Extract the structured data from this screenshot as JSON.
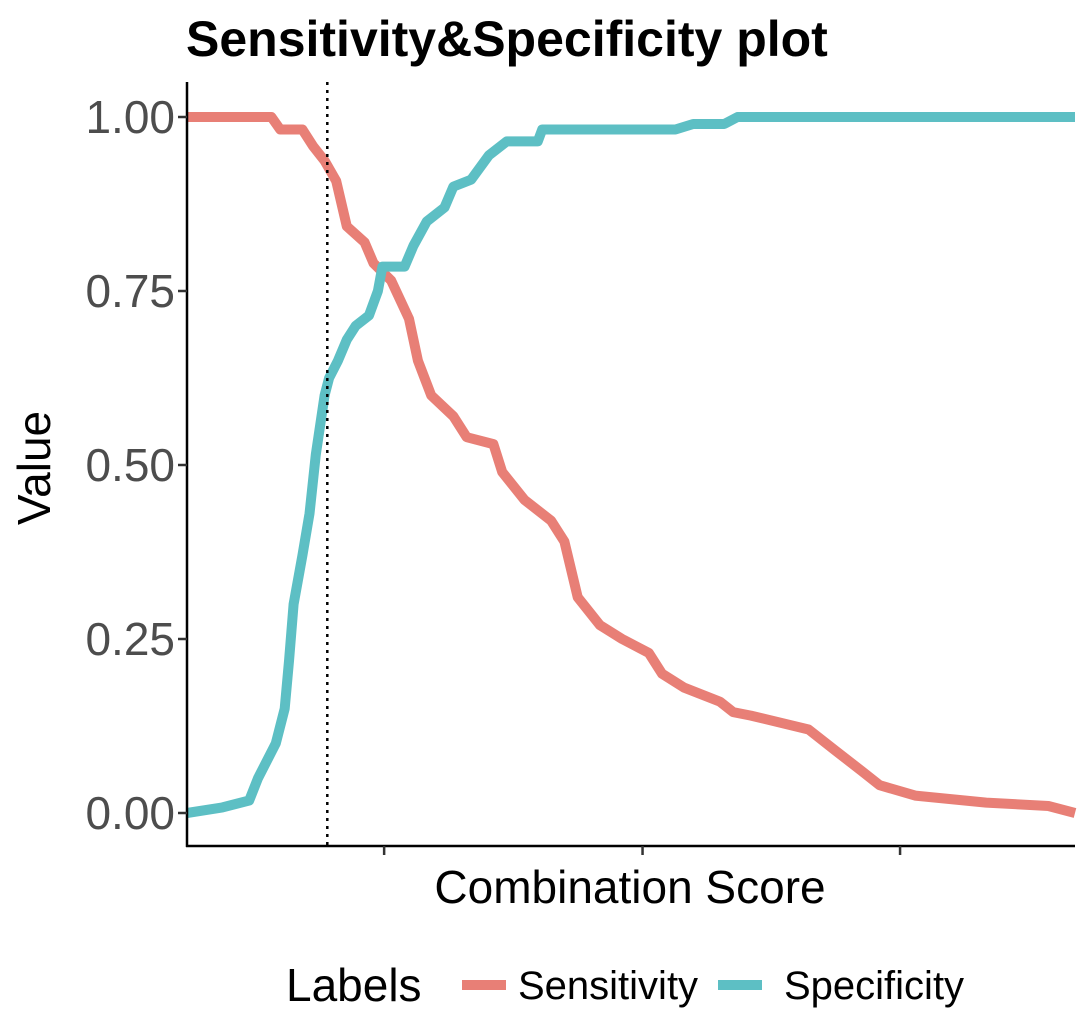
{
  "chart_data": {
    "type": "line",
    "title": "Sensitivity&Specificity plot",
    "xlabel": "Combination Score",
    "ylabel": "Value",
    "ylim": [
      0,
      1
    ],
    "yticks": [
      "0.00",
      "0.25",
      "0.50",
      "0.75",
      "1.00"
    ],
    "xlim": [
      0,
      1
    ],
    "grid": false,
    "legend": {
      "title": "Labels",
      "position": "bottom"
    },
    "cutoff_x": 0.158,
    "series": [
      {
        "name": "Sensitivity",
        "color": "#E87F76",
        "points": [
          [
            0.0,
            1.0
          ],
          [
            0.095,
            1.0
          ],
          [
            0.105,
            0.982
          ],
          [
            0.13,
            0.982
          ],
          [
            0.142,
            0.958
          ],
          [
            0.155,
            0.937
          ],
          [
            0.168,
            0.908
          ],
          [
            0.18,
            0.843
          ],
          [
            0.2,
            0.82
          ],
          [
            0.21,
            0.79
          ],
          [
            0.23,
            0.765
          ],
          [
            0.25,
            0.71
          ],
          [
            0.26,
            0.65
          ],
          [
            0.275,
            0.6
          ],
          [
            0.3,
            0.57
          ],
          [
            0.315,
            0.54
          ],
          [
            0.345,
            0.53
          ],
          [
            0.355,
            0.49
          ],
          [
            0.38,
            0.45
          ],
          [
            0.41,
            0.42
          ],
          [
            0.425,
            0.39
          ],
          [
            0.44,
            0.31
          ],
          [
            0.465,
            0.27
          ],
          [
            0.49,
            0.25
          ],
          [
            0.52,
            0.23
          ],
          [
            0.535,
            0.2
          ],
          [
            0.56,
            0.18
          ],
          [
            0.6,
            0.16
          ],
          [
            0.615,
            0.145
          ],
          [
            0.635,
            0.14
          ],
          [
            0.7,
            0.12
          ],
          [
            0.73,
            0.09
          ],
          [
            0.76,
            0.06
          ],
          [
            0.78,
            0.04
          ],
          [
            0.82,
            0.025
          ],
          [
            0.9,
            0.015
          ],
          [
            0.97,
            0.01
          ],
          [
            1.0,
            0.0
          ]
        ]
      },
      {
        "name": "Specificity",
        "color": "#5DBFC4",
        "points": [
          [
            0.0,
            0.0
          ],
          [
            0.04,
            0.008
          ],
          [
            0.07,
            0.018
          ],
          [
            0.08,
            0.05
          ],
          [
            0.1,
            0.1
          ],
          [
            0.11,
            0.15
          ],
          [
            0.115,
            0.22
          ],
          [
            0.12,
            0.3
          ],
          [
            0.13,
            0.37
          ],
          [
            0.138,
            0.43
          ],
          [
            0.145,
            0.515
          ],
          [
            0.155,
            0.6
          ],
          [
            0.16,
            0.625
          ],
          [
            0.17,
            0.65
          ],
          [
            0.18,
            0.68
          ],
          [
            0.19,
            0.7
          ],
          [
            0.205,
            0.715
          ],
          [
            0.215,
            0.75
          ],
          [
            0.22,
            0.785
          ],
          [
            0.245,
            0.785
          ],
          [
            0.255,
            0.815
          ],
          [
            0.27,
            0.85
          ],
          [
            0.29,
            0.87
          ],
          [
            0.3,
            0.9
          ],
          [
            0.32,
            0.91
          ],
          [
            0.34,
            0.945
          ],
          [
            0.36,
            0.965
          ],
          [
            0.395,
            0.965
          ],
          [
            0.4,
            0.982
          ],
          [
            0.55,
            0.982
          ],
          [
            0.57,
            0.99
          ],
          [
            0.605,
            0.99
          ],
          [
            0.62,
            1.0
          ],
          [
            1.0,
            1.0
          ]
        ]
      }
    ]
  }
}
